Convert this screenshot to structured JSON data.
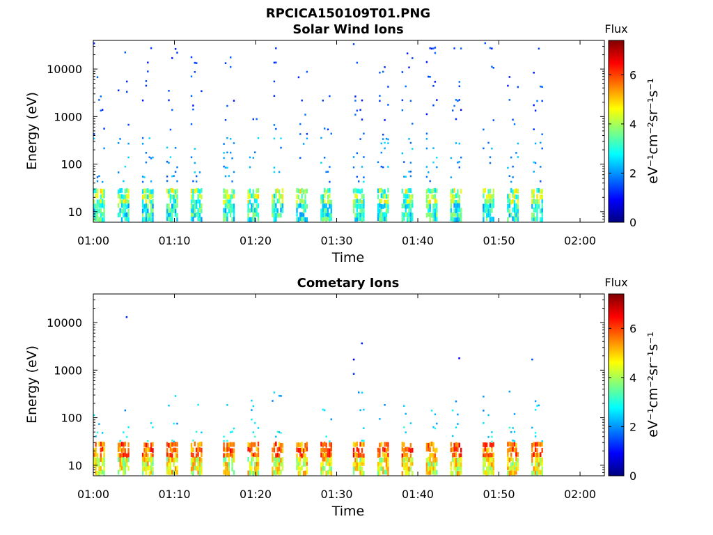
{
  "figure": {
    "title": "RPCICA150109T01.PNG"
  },
  "colorscale": {
    "name": "jet",
    "stops": [
      "#00007f",
      "#0000ff",
      "#007fff",
      "#00ffff",
      "#7fff7f",
      "#ffff00",
      "#ff7f00",
      "#ff0000",
      "#7f0000"
    ]
  },
  "chart_data": [
    {
      "type": "heatmap",
      "title": "Solar Wind Ions",
      "xlabel": "Time",
      "ylabel": "Energy (eV)",
      "yscale": "log",
      "ylim": [
        6,
        40000
      ],
      "xlim": [
        "01:00",
        "02:03"
      ],
      "x_ticks": [
        "01:00",
        "01:10",
        "01:20",
        "01:30",
        "01:40",
        "01:50",
        "02:00"
      ],
      "y_ticks": [
        "10",
        "100",
        "1000",
        "10000"
      ],
      "colorbar": {
        "label": "Flux",
        "unit": "eV⁻¹cm⁻²sr⁻¹s⁻¹",
        "range": [
          0,
          7.4
        ],
        "ticks": [
          "0",
          "2",
          "4",
          "6"
        ]
      },
      "data_end": "01:56",
      "sweep_starts": [
        "01:00",
        "01:03",
        "01:06",
        "01:09",
        "01:12",
        "01:16",
        "01:19",
        "01:22",
        "01:25",
        "01:28",
        "01:32",
        "01:35",
        "01:38",
        "01:41",
        "01:44",
        "01:48",
        "01:51",
        "01:54"
      ],
      "bands": [
        {
          "energy_range": [
            14,
            30
          ],
          "flux_range": [
            2.4,
            5.0
          ],
          "description": "dense low-energy band"
        },
        {
          "energy_range": [
            6,
            14
          ],
          "flux_range": [
            2.0,
            4.0
          ],
          "description": "lowest energy bins"
        },
        {
          "energy_range": [
            40,
            400
          ],
          "flux_range": [
            1.5,
            2.6
          ],
          "description": "sparse mid-energy points"
        },
        {
          "energy_range": [
            400,
            40000
          ],
          "flux_range": [
            1.0,
            1.8
          ],
          "description": "sparse high-energy points"
        }
      ]
    },
    {
      "type": "heatmap",
      "title": "Cometary Ions",
      "xlabel": "Time",
      "ylabel": "Energy (eV)",
      "yscale": "log",
      "ylim": [
        6,
        40000
      ],
      "xlim": [
        "01:00",
        "02:03"
      ],
      "x_ticks": [
        "01:00",
        "01:10",
        "01:20",
        "01:30",
        "01:40",
        "01:50",
        "02:00"
      ],
      "y_ticks": [
        "10",
        "100",
        "1000",
        "10000"
      ],
      "colorbar": {
        "label": "Flux",
        "unit": "eV⁻¹cm⁻²sr⁻¹s⁻¹",
        "range": [
          0,
          7.4
        ],
        "ticks": [
          "0",
          "2",
          "4",
          "6"
        ]
      },
      "data_end": "01:56",
      "sweep_starts": [
        "01:00",
        "01:03",
        "01:06",
        "01:09",
        "01:12",
        "01:16",
        "01:19",
        "01:22",
        "01:25",
        "01:28",
        "01:32",
        "01:35",
        "01:38",
        "01:41",
        "01:44",
        "01:48",
        "01:51",
        "01:54"
      ],
      "bands": [
        {
          "energy_range": [
            14,
            30
          ],
          "flux_range": [
            4.8,
            6.6
          ],
          "description": "intense low-energy band"
        },
        {
          "energy_range": [
            6,
            14
          ],
          "flux_range": [
            3.4,
            5.6
          ],
          "description": "lowest energy bins"
        },
        {
          "energy_range": [
            30,
            70
          ],
          "flux_range": [
            2.2,
            3.2
          ],
          "description": "moderate points above band"
        },
        {
          "energy_range": [
            70,
            400
          ],
          "flux_range": [
            1.8,
            2.8
          ],
          "description": "sparse mid-energy points"
        }
      ],
      "isolated_points": [
        {
          "time": "01:04",
          "energy": 12500,
          "flux": 1.2
        },
        {
          "time": "01:32",
          "energy": 1600,
          "flux": 0.9
        },
        {
          "time": "01:33",
          "energy": 3500,
          "flux": 1.1
        },
        {
          "time": "01:32",
          "energy": 800,
          "flux": 1.3
        },
        {
          "time": "01:45",
          "energy": 1700,
          "flux": 1.0
        },
        {
          "time": "01:54",
          "energy": 1600,
          "flux": 1.5
        }
      ]
    }
  ]
}
